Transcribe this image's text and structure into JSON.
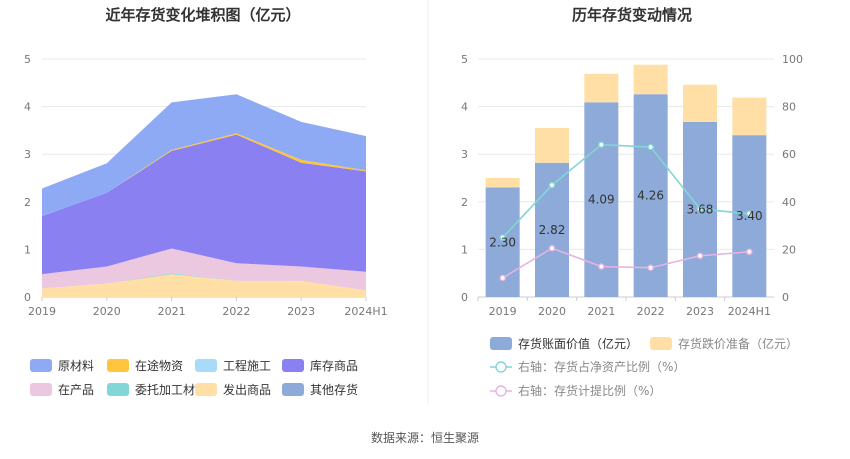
{
  "source_label": "数据来源：恒生聚源",
  "chart_data": [
    {
      "type": "area",
      "title": "近年存货变化堆积图（亿元）",
      "x": [
        "2019",
        "2020",
        "2021",
        "2022",
        "2023",
        "2024H1"
      ],
      "ylim": [
        0,
        5
      ],
      "yticks": [
        "0",
        "1",
        "2",
        "3",
        "4",
        "5"
      ],
      "stacked": true,
      "grid": true,
      "legend_position": "bottom",
      "series": [
        {
          "name": "原材料",
          "color": "#8faaf5",
          "values": [
            0.58,
            0.62,
            1.0,
            0.82,
            0.8,
            0.72
          ]
        },
        {
          "name": "在途物资",
          "color": "#ffc53d",
          "values": [
            0.0,
            0.0,
            0.02,
            0.03,
            0.06,
            0.02
          ]
        },
        {
          "name": "工程施工",
          "color": "#a6dcf7",
          "values": [
            0.0,
            0.0,
            0.0,
            0.0,
            0.0,
            0.0
          ]
        },
        {
          "name": "库存商品",
          "color": "#8b80f2",
          "values": [
            1.22,
            1.55,
            2.05,
            2.7,
            2.18,
            2.11
          ]
        },
        {
          "name": "在产品",
          "color": "#ebc7e0",
          "values": [
            0.3,
            0.36,
            0.52,
            0.37,
            0.3,
            0.39
          ]
        },
        {
          "name": "委托加工材料",
          "color": "#82d6d6",
          "values": [
            0.0,
            0.0,
            0.02,
            0.0,
            0.0,
            0.0
          ]
        },
        {
          "name": "发出商品",
          "color": "#ffdfa6",
          "values": [
            0.18,
            0.28,
            0.48,
            0.34,
            0.34,
            0.14
          ]
        },
        {
          "name": "其他存货",
          "color": "#8eaad9",
          "values": [
            0.0,
            0.0,
            0.0,
            0.0,
            0.0,
            0.0
          ]
        }
      ]
    },
    {
      "type": "bar",
      "title": "历年存货变动情况",
      "categories": [
        "2019",
        "2020",
        "2021",
        "2022",
        "2023",
        "2024H1"
      ],
      "ylim": [
        0,
        5
      ],
      "yticks": [
        "0",
        "1",
        "2",
        "3",
        "4",
        "5"
      ],
      "y2lim": [
        0,
        100
      ],
      "y2ticks": [
        "0",
        "20",
        "40",
        "60",
        "80",
        "100"
      ],
      "stacked": true,
      "grid": true,
      "legend_position": "bottom",
      "series": [
        {
          "name": "存货账面价值（亿元）",
          "color": "#8eaad9",
          "values": [
            2.3,
            2.82,
            4.09,
            4.26,
            3.68,
            3.4
          ],
          "labels": [
            "2.30",
            "2.82",
            "4.09",
            "4.26",
            "3.68",
            "3.40"
          ]
        },
        {
          "name": "存货跌价准备（亿元）",
          "color": "#ffdfa6",
          "values": [
            0.2,
            0.73,
            0.6,
            0.62,
            0.78,
            0.79
          ]
        }
      ],
      "line_series": [
        {
          "name": "右轴：存货占净资产比例（%）",
          "color": "#82d6d6",
          "axis": "right",
          "values": [
            25,
            47,
            64,
            63,
            37,
            35
          ]
        },
        {
          "name": "右轴：存货计提比例（%）",
          "color": "#e5b3e0",
          "axis": "right",
          "values": [
            8,
            20.5,
            12.8,
            12.3,
            17.3,
            19
          ]
        }
      ]
    }
  ]
}
